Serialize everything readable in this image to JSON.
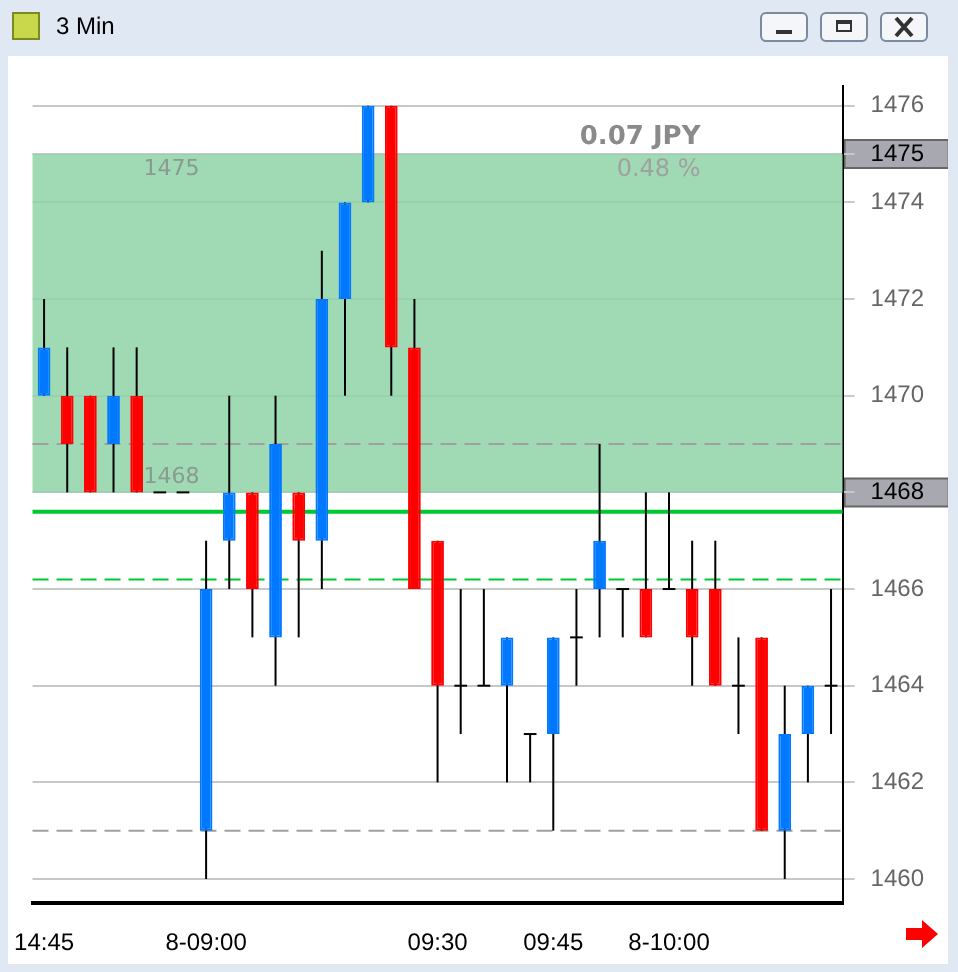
{
  "chart_data": {
    "type": "candlestick",
    "title": "3 Min",
    "categories": [
      "14:45",
      null,
      null,
      null,
      null,
      null,
      null,
      "8-09:00",
      null,
      null,
      null,
      null,
      null,
      null,
      null,
      null,
      null,
      "09:30",
      null,
      null,
      null,
      null,
      "09:45",
      null,
      null,
      null,
      null,
      "8-10:00",
      null,
      null,
      null,
      null,
      null,
      null,
      null
    ],
    "ohlc": [
      [
        1470,
        1472,
        1470,
        1471
      ],
      [
        1470,
        1471,
        1468,
        1469
      ],
      [
        1470,
        1470,
        1468,
        1468
      ],
      [
        1469,
        1471,
        1468,
        1470
      ],
      [
        1470,
        1471,
        1468,
        1468
      ],
      [
        1468,
        1468,
        1468,
        1468
      ],
      [
        1468,
        1468,
        1468,
        1468
      ],
      [
        1461,
        1467,
        1460,
        1466
      ],
      [
        1467,
        1470,
        1466,
        1468
      ],
      [
        1468,
        1468,
        1465,
        1466
      ],
      [
        1465,
        1470,
        1464,
        1469
      ],
      [
        1468,
        1468,
        1465,
        1467
      ],
      [
        1467,
        1473,
        1466,
        1472
      ],
      [
        1472,
        1474,
        1470,
        1474
      ],
      [
        1474,
        1476,
        1474,
        1476
      ],
      [
        1476,
        1476,
        1470,
        1471
      ],
      [
        1471,
        1472,
        1466,
        1466
      ],
      [
        1467,
        1467,
        1462,
        1464
      ],
      [
        1464,
        1466,
        1463,
        1464
      ],
      [
        1464,
        1466,
        1464,
        1464
      ],
      [
        1464,
        1465,
        1462,
        1465
      ],
      [
        1463,
        1463,
        1462,
        1463
      ],
      [
        1463,
        1465,
        1461,
        1465
      ],
      [
        1465,
        1466,
        1464,
        1465
      ],
      [
        1466,
        1469,
        1465,
        1467
      ],
      [
        1466,
        1466,
        1465,
        1466
      ],
      [
        1466,
        1468,
        1465,
        1465
      ],
      [
        1466,
        1468,
        1466,
        1466
      ],
      [
        1466,
        1467,
        1464,
        1465
      ],
      [
        1466,
        1467,
        1464,
        1464
      ],
      [
        1464,
        1465,
        1463,
        1464
      ],
      [
        1465,
        1465,
        1461,
        1461
      ],
      [
        1461,
        1464,
        1460,
        1463
      ],
      [
        1463,
        1464,
        1462,
        1464
      ],
      [
        1464,
        1466,
        1463,
        1464
      ]
    ],
    "colors": [
      "#0078ff",
      "#ff0000",
      "#ff0000",
      "#0078ff",
      "#ff0000",
      "#000000",
      "#000000",
      "#0078ff",
      "#0078ff",
      "#ff0000",
      "#0078ff",
      "#ff0000",
      "#0078ff",
      "#0078ff",
      "#0078ff",
      "#ff0000",
      "#ff0000",
      "#ff0000",
      "#000000",
      "#000000",
      "#0078ff",
      "#000000",
      "#0078ff",
      "#000000",
      "#0078ff",
      "#000000",
      "#ff0000",
      "#000000",
      "#ff0000",
      "#ff0000",
      "#000000",
      "#ff0000",
      "#0078ff",
      "#0078ff",
      "#000000"
    ],
    "ylim": [
      1459.5,
      1476.4
    ],
    "yticks": [
      1460,
      1462,
      1464,
      1466,
      1468,
      1470,
      1472,
      1474,
      1475,
      1476
    ],
    "grid": "y",
    "ref_lines": [
      {
        "axis": "y",
        "value": 1469,
        "color": "#a0a0a0",
        "line_style": "dashed"
      },
      {
        "axis": "y",
        "value": 1461,
        "color": "#a0a0a0",
        "line_style": "dashed"
      },
      {
        "axis": "y",
        "value": 1467.6,
        "color": "#00c832",
        "line_style": "solid"
      },
      {
        "axis": "y",
        "value": 1466.2,
        "color": "#00c832",
        "line_style": "dashed"
      }
    ],
    "bands": [
      {
        "axis": "y",
        "from": 1468,
        "to": 1475,
        "color": "#8fd4a8"
      }
    ],
    "annotations": [
      {
        "text": "1475",
        "y": 1475
      },
      {
        "text": "1468",
        "y": 1468
      },
      "0.07 JPY",
      "0.48 %"
    ]
  }
}
